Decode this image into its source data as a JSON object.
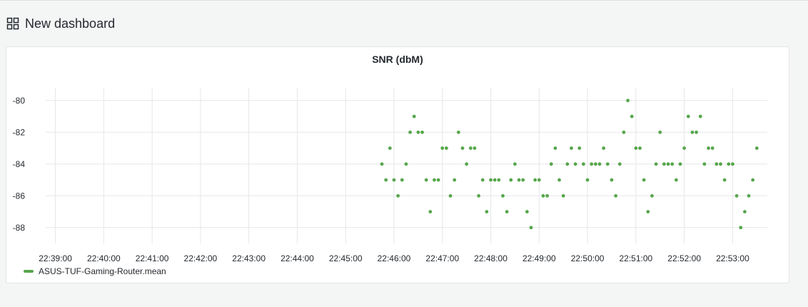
{
  "dashboard": {
    "title": "New dashboard",
    "icon": "grid-icon"
  },
  "panel": {
    "title": "SNR (dbM)"
  },
  "colors": {
    "series": "#56a64b",
    "grid": "#e6e7e9",
    "text": "#24292e"
  },
  "chart_data": {
    "type": "scatter",
    "title": "SNR (dbM)",
    "xlabel": "",
    "ylabel": "",
    "xlim": [
      "22:38:48",
      "22:53:43"
    ],
    "ylim": [
      -89,
      -79.2
    ],
    "grid": true,
    "legend_position": "bottom-left",
    "x_ticks": [
      "22:39:00",
      "22:40:00",
      "22:41:00",
      "22:42:00",
      "22:43:00",
      "22:44:00",
      "22:45:00",
      "22:46:00",
      "22:47:00",
      "22:48:00",
      "22:49:00",
      "22:50:00",
      "22:51:00",
      "22:52:00",
      "22:53:00"
    ],
    "y_ticks": [
      -80,
      -82,
      -84,
      -86,
      -88
    ],
    "series": [
      {
        "name": "ASUS-TUF-Gaming-Router.mean",
        "color": "#56a64b",
        "points": [
          [
            "22:45:45",
            -84
          ],
          [
            "22:45:50",
            -85
          ],
          [
            "22:45:55",
            -83
          ],
          [
            "22:46:00",
            -85
          ],
          [
            "22:46:05",
            -86
          ],
          [
            "22:46:10",
            -85
          ],
          [
            "22:46:15",
            -84
          ],
          [
            "22:46:20",
            -82
          ],
          [
            "22:46:25",
            -81
          ],
          [
            "22:46:30",
            -82
          ],
          [
            "22:46:35",
            -82
          ],
          [
            "22:46:40",
            -85
          ],
          [
            "22:46:45",
            -87
          ],
          [
            "22:46:50",
            -85
          ],
          [
            "22:46:55",
            -85
          ],
          [
            "22:47:00",
            -83
          ],
          [
            "22:47:05",
            -83
          ],
          [
            "22:47:10",
            -86
          ],
          [
            "22:47:15",
            -85
          ],
          [
            "22:47:20",
            -82
          ],
          [
            "22:47:25",
            -83
          ],
          [
            "22:47:30",
            -84
          ],
          [
            "22:47:35",
            -83
          ],
          [
            "22:47:40",
            -83
          ],
          [
            "22:47:45",
            -86
          ],
          [
            "22:47:50",
            -85
          ],
          [
            "22:47:55",
            -87
          ],
          [
            "22:48:00",
            -85
          ],
          [
            "22:48:05",
            -85
          ],
          [
            "22:48:10",
            -85
          ],
          [
            "22:48:15",
            -86
          ],
          [
            "22:48:20",
            -87
          ],
          [
            "22:48:25",
            -85
          ],
          [
            "22:48:30",
            -84
          ],
          [
            "22:48:35",
            -85
          ],
          [
            "22:48:40",
            -85
          ],
          [
            "22:48:45",
            -87
          ],
          [
            "22:48:50",
            -88
          ],
          [
            "22:48:55",
            -85
          ],
          [
            "22:49:00",
            -85
          ],
          [
            "22:49:05",
            -86
          ],
          [
            "22:49:10",
            -86
          ],
          [
            "22:49:15",
            -84
          ],
          [
            "22:49:20",
            -83
          ],
          [
            "22:49:25",
            -85
          ],
          [
            "22:49:30",
            -86
          ],
          [
            "22:49:35",
            -84
          ],
          [
            "22:49:40",
            -83
          ],
          [
            "22:49:45",
            -84
          ],
          [
            "22:49:50",
            -83
          ],
          [
            "22:49:55",
            -84
          ],
          [
            "22:50:00",
            -85
          ],
          [
            "22:50:05",
            -84
          ],
          [
            "22:50:10",
            -84
          ],
          [
            "22:50:15",
            -84
          ],
          [
            "22:50:20",
            -83
          ],
          [
            "22:50:25",
            -84
          ],
          [
            "22:50:30",
            -85
          ],
          [
            "22:50:35",
            -86
          ],
          [
            "22:50:40",
            -84
          ],
          [
            "22:50:45",
            -82
          ],
          [
            "22:50:50",
            -80
          ],
          [
            "22:50:55",
            -81
          ],
          [
            "22:51:00",
            -83
          ],
          [
            "22:51:05",
            -83
          ],
          [
            "22:51:10",
            -85
          ],
          [
            "22:51:15",
            -87
          ],
          [
            "22:51:20",
            -86
          ],
          [
            "22:51:25",
            -84
          ],
          [
            "22:51:30",
            -82
          ],
          [
            "22:51:35",
            -84
          ],
          [
            "22:51:40",
            -84
          ],
          [
            "22:51:45",
            -84
          ],
          [
            "22:51:50",
            -85
          ],
          [
            "22:51:55",
            -84
          ],
          [
            "22:52:00",
            -83
          ],
          [
            "22:52:05",
            -81
          ],
          [
            "22:52:10",
            -82
          ],
          [
            "22:52:15",
            -82
          ],
          [
            "22:52:20",
            -81
          ],
          [
            "22:52:25",
            -84
          ],
          [
            "22:52:30",
            -83
          ],
          [
            "22:52:35",
            -83
          ],
          [
            "22:52:40",
            -84
          ],
          [
            "22:52:45",
            -84
          ],
          [
            "22:52:50",
            -85
          ],
          [
            "22:52:55",
            -84
          ],
          [
            "22:53:00",
            -84
          ],
          [
            "22:53:05",
            -86
          ],
          [
            "22:53:10",
            -88
          ],
          [
            "22:53:15",
            -87
          ],
          [
            "22:53:20",
            -86
          ],
          [
            "22:53:25",
            -85
          ],
          [
            "22:53:30",
            -83
          ]
        ]
      }
    ]
  }
}
